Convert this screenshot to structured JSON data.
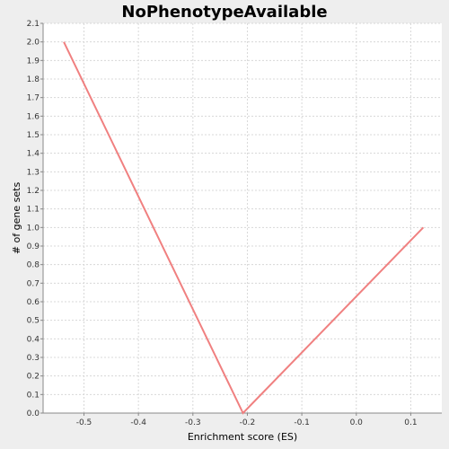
{
  "chart_data": {
    "type": "line",
    "title": "NoPhenotypeAvailable",
    "xlabel": "Enrichment score (ES)",
    "ylabel": "# of gene sets",
    "xlim": [
      -0.575,
      0.157
    ],
    "ylim": [
      0,
      2.1
    ],
    "x_ticks": [
      -0.5,
      -0.4,
      -0.3,
      -0.2,
      -0.1,
      0.0,
      0.1
    ],
    "x_tick_labels": [
      "-0.5",
      "-0.4",
      "-0.3",
      "-0.2",
      "-0.1",
      "0.0",
      "0.1"
    ],
    "y_ticks": [
      0,
      0.1,
      0.2,
      0.3,
      0.4,
      0.5,
      0.6,
      0.7,
      0.8,
      0.9,
      1.0,
      1.1,
      1.2,
      1.3,
      1.4,
      1.5,
      1.6,
      1.7,
      1.8,
      1.9,
      2.0,
      2.1
    ],
    "y_tick_labels": [
      "0.0",
      "0.1",
      "0.2",
      "0.3",
      "0.4",
      "0.5",
      "0.6",
      "0.7",
      "0.8",
      "0.9",
      "1.0",
      "1.1",
      "1.2",
      "1.3",
      "1.4",
      "1.5",
      "1.6",
      "1.7",
      "1.8",
      "1.9",
      "2.0",
      "2.1"
    ],
    "grid": true,
    "series": [
      {
        "x": [
          -0.537,
          -0.208,
          0.123
        ],
        "y": [
          2.0,
          0.0,
          1.0
        ],
        "color": "#f08080"
      }
    ]
  }
}
